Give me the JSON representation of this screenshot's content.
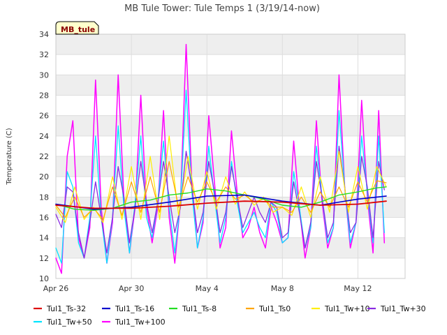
{
  "chart_data": {
    "type": "line",
    "title": "MB Tule Tower: Tule Temps 1 (3/19/14-now)",
    "xlabel": "",
    "ylabel": "Temperature (C)",
    "ylim": [
      10,
      34
    ],
    "yticks": [
      10,
      12,
      14,
      16,
      18,
      20,
      22,
      24,
      26,
      28,
      30,
      32,
      34
    ],
    "xlim": [
      0,
      18.5
    ],
    "xtick_labels": [
      {
        "x": 0,
        "label": "Apr 26"
      },
      {
        "x": 4,
        "label": "Apr 30"
      },
      {
        "x": 8,
        "label": "May 4"
      },
      {
        "x": 12,
        "label": "May 8"
      },
      {
        "x": 16,
        "label": "May 12"
      }
    ],
    "grid": true,
    "legend_position": "bottom",
    "badge_label": "MB_tule",
    "badge_fill": "#ffffcc",
    "badge_text_color": "#8b0000",
    "band_color": "#eeeeee",
    "series": [
      {
        "name": "Tul1_Ts-32",
        "color": "#dd0000",
        "width": 1.8,
        "x": [
          0,
          2,
          4,
          6,
          8,
          10,
          12,
          14,
          16,
          17.5
        ],
        "y": [
          17.2,
          16.9,
          16.9,
          17.1,
          17.4,
          17.6,
          17.5,
          17.2,
          17.3,
          17.6
        ]
      },
      {
        "name": "Tul1_Ts-16",
        "color": "#0000cc",
        "width": 1.6,
        "x": [
          0,
          2,
          4,
          6,
          8,
          10,
          12,
          14,
          16,
          17.5
        ],
        "y": [
          17.3,
          16.8,
          17.0,
          17.5,
          18.1,
          18.2,
          17.6,
          17.2,
          17.8,
          18.1
        ]
      },
      {
        "name": "Tul1_Ts-8",
        "color": "#22dd22",
        "width": 1.4,
        "x": [
          0,
          1,
          2,
          3,
          4,
          5,
          6,
          7,
          8,
          9,
          10,
          11,
          12,
          13,
          14,
          15,
          16,
          17,
          17.5
        ],
        "y": [
          17.3,
          16.8,
          16.7,
          16.9,
          17.5,
          17.7,
          18.2,
          18.4,
          18.8,
          18.6,
          18.2,
          17.8,
          17.2,
          17.0,
          17.5,
          18.2,
          18.5,
          18.9,
          19.0
        ]
      },
      {
        "name": "Tul1_Ts0",
        "color": "#ffa500",
        "width": 1.2,
        "x": [
          0,
          0.5,
          1,
          1.5,
          2,
          2.5,
          3,
          3.5,
          4,
          4.5,
          5,
          5.5,
          6,
          6.5,
          7,
          7.5,
          8,
          8.5,
          9,
          9.5,
          10,
          10.5,
          11,
          11.5,
          12,
          12.5,
          13,
          13.5,
          14,
          14.5,
          15,
          15.5,
          16,
          16.5,
          17,
          17.5
        ],
        "y": [
          17.2,
          16.0,
          18.0,
          16.0,
          16.9,
          15.8,
          19.0,
          16.2,
          19.5,
          16.5,
          20.0,
          16.5,
          21.5,
          17.0,
          20.0,
          17.5,
          19.5,
          17.5,
          19.0,
          17.8,
          18.2,
          17.5,
          17.8,
          17.0,
          17.0,
          16.5,
          18.0,
          16.5,
          18.5,
          17.0,
          19.0,
          17.0,
          19.5,
          17.5,
          19.6,
          19.4
        ]
      },
      {
        "name": "Tul1_Tw+10",
        "color": "#ffee00",
        "width": 1.2,
        "x": [
          0,
          0.5,
          1,
          1.5,
          2,
          2.5,
          3,
          3.5,
          4,
          4.5,
          5,
          5.5,
          6,
          6.5,
          7,
          7.5,
          8,
          8.5,
          9,
          9.5,
          10,
          10.5,
          11,
          11.5,
          12,
          12.5,
          13,
          13.5,
          14,
          14.5,
          15,
          15.5,
          16,
          16.5,
          17,
          17.5
        ],
        "y": [
          17.0,
          15.5,
          19.0,
          15.8,
          17.0,
          15.5,
          20.0,
          15.8,
          21.0,
          15.8,
          22.0,
          15.8,
          24.0,
          16.2,
          22.0,
          16.8,
          20.5,
          16.8,
          20.0,
          17.3,
          18.5,
          17.2,
          18.0,
          16.5,
          17.0,
          16.2,
          19.0,
          16.0,
          20.0,
          16.5,
          22.5,
          16.5,
          21.0,
          16.8,
          21.0,
          19.0
        ]
      },
      {
        "name": "Tul1_Tw+30",
        "color": "#8a2be2",
        "width": 1.3,
        "x": [
          0,
          0.3,
          0.6,
          0.9,
          1.2,
          1.5,
          1.8,
          2.1,
          2.4,
          2.7,
          3.0,
          3.3,
          3.6,
          3.9,
          4.2,
          4.5,
          4.8,
          5.1,
          5.4,
          5.7,
          6.0,
          6.3,
          6.6,
          6.9,
          7.2,
          7.5,
          7.8,
          8.1,
          8.4,
          8.7,
          9.0,
          9.3,
          9.6,
          9.9,
          10.2,
          10.5,
          10.8,
          11.1,
          11.4,
          11.7,
          12.0,
          12.3,
          12.6,
          12.9,
          13.2,
          13.5,
          13.8,
          14.1,
          14.4,
          14.7,
          15.0,
          15.3,
          15.6,
          15.9,
          16.2,
          16.5,
          16.8,
          17.1,
          17.4
        ],
        "y": [
          16.3,
          15.0,
          19.0,
          18.5,
          14.5,
          12.0,
          15.5,
          19.5,
          16.0,
          12.5,
          16.0,
          21.0,
          18.0,
          13.5,
          17.0,
          21.5,
          17.5,
          14.5,
          17.5,
          21.5,
          18.0,
          14.5,
          17.0,
          22.5,
          19.0,
          14.5,
          16.5,
          21.5,
          18.5,
          14.5,
          16.5,
          21.0,
          18.0,
          15.0,
          16.5,
          18.0,
          16.5,
          15.5,
          17.5,
          17.0,
          14.0,
          14.5,
          19.5,
          16.5,
          13.0,
          15.5,
          21.5,
          18.0,
          14.0,
          15.5,
          23.0,
          19.0,
          14.5,
          15.5,
          22.0,
          19.0,
          14.0,
          21.5,
          18.7
        ]
      },
      {
        "name": "Tul1_Tw+50",
        "color": "#00e5ff",
        "width": 1.3,
        "x": [
          0,
          0.3,
          0.6,
          0.9,
          1.2,
          1.5,
          1.8,
          2.1,
          2.4,
          2.7,
          3.0,
          3.3,
          3.6,
          3.9,
          4.2,
          4.5,
          4.8,
          5.1,
          5.4,
          5.7,
          6.0,
          6.3,
          6.6,
          6.9,
          7.2,
          7.5,
          7.8,
          8.1,
          8.4,
          8.7,
          9.0,
          9.3,
          9.6,
          9.9,
          10.2,
          10.5,
          10.8,
          11.1,
          11.4,
          11.7,
          12.0,
          12.3,
          12.6,
          12.9,
          13.2,
          13.5,
          13.8,
          14.1,
          14.4,
          14.7,
          15.0,
          15.3,
          15.6,
          15.9,
          16.2,
          16.5,
          16.8,
          17.1,
          17.4
        ],
        "y": [
          13.0,
          11.5,
          20.5,
          19.0,
          13.5,
          12.0,
          16.0,
          24.0,
          16.0,
          11.5,
          16.0,
          25.0,
          17.0,
          12.5,
          17.5,
          24.0,
          16.0,
          14.0,
          17.5,
          23.5,
          17.0,
          12.5,
          17.5,
          28.5,
          18.5,
          13.0,
          16.0,
          23.0,
          18.0,
          13.5,
          16.0,
          21.5,
          17.5,
          14.5,
          15.5,
          16.5,
          15.0,
          14.0,
          17.5,
          16.5,
          13.5,
          14.0,
          20.5,
          17.0,
          13.0,
          15.0,
          23.0,
          18.0,
          13.5,
          15.0,
          26.5,
          19.0,
          13.5,
          15.5,
          24.0,
          18.5,
          13.5,
          24.0,
          14.5
        ]
      },
      {
        "name": "Tul1_Tw+100",
        "color": "#ff00ff",
        "width": 1.5,
        "x": [
          0,
          0.3,
          0.6,
          0.9,
          1.2,
          1.5,
          1.8,
          2.1,
          2.4,
          2.7,
          3.0,
          3.3,
          3.6,
          3.9,
          4.2,
          4.5,
          4.8,
          5.1,
          5.4,
          5.7,
          6.0,
          6.3,
          6.6,
          6.9,
          7.2,
          7.5,
          7.8,
          8.1,
          8.4,
          8.7,
          9.0,
          9.3,
          9.6,
          9.9,
          10.2,
          10.5,
          10.8,
          11.1,
          11.4,
          11.7,
          12.0,
          12.3,
          12.6,
          12.9,
          13.2,
          13.5,
          13.8,
          14.1,
          14.4,
          14.7,
          15.0,
          15.3,
          15.6,
          15.9,
          16.2,
          16.5,
          16.8,
          17.1,
          17.4
        ],
        "y": [
          12.0,
          10.5,
          22.0,
          25.5,
          14.0,
          12.0,
          15.0,
          29.5,
          17.0,
          11.5,
          15.5,
          30.0,
          18.0,
          12.5,
          17.0,
          28.0,
          17.0,
          13.5,
          17.0,
          26.5,
          16.0,
          11.5,
          17.5,
          33.0,
          19.5,
          13.0,
          15.5,
          26.0,
          19.5,
          13.0,
          15.0,
          24.5,
          18.5,
          14.0,
          15.0,
          17.0,
          14.5,
          13.0,
          17.0,
          15.5,
          13.5,
          14.0,
          23.5,
          17.0,
          12.0,
          15.0,
          25.5,
          17.5,
          13.0,
          15.0,
          30.0,
          19.0,
          13.0,
          15.5,
          27.5,
          18.0,
          12.5,
          26.5,
          13.5
        ]
      }
    ]
  }
}
